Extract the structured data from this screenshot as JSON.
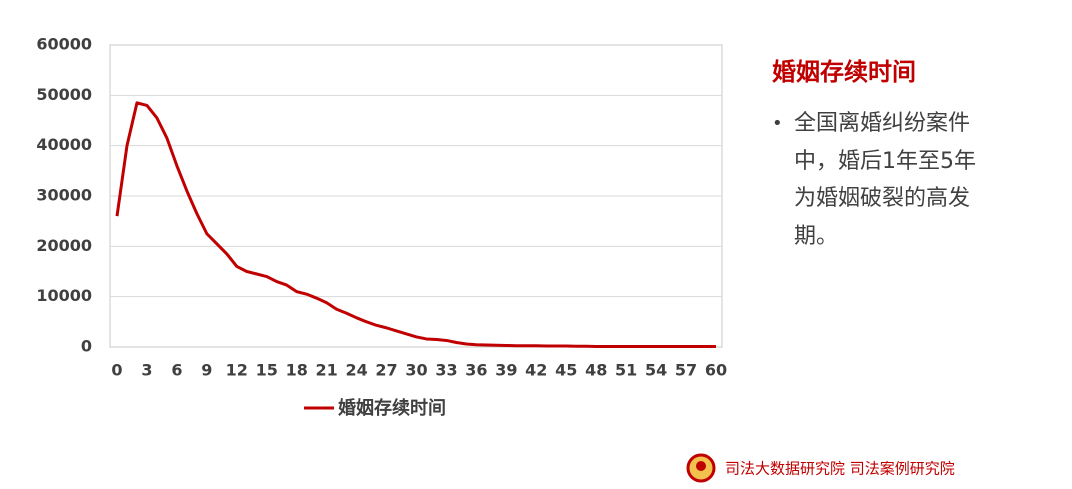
{
  "chart_data": {
    "type": "line",
    "x": [
      0,
      1,
      2,
      3,
      4,
      5,
      6,
      7,
      8,
      9,
      10,
      11,
      12,
      13,
      14,
      15,
      16,
      17,
      18,
      19,
      20,
      21,
      22,
      23,
      24,
      25,
      26,
      27,
      28,
      29,
      30,
      31,
      32,
      33,
      34,
      35,
      36,
      37,
      38,
      39,
      40,
      41,
      42,
      43,
      44,
      45,
      46,
      47,
      48,
      49,
      50,
      51,
      52,
      53,
      54,
      55,
      56,
      57,
      58,
      59,
      60
    ],
    "series": [
      {
        "name": "婚姻存续时间",
        "color": "#c00000",
        "values": [
          26000,
          40000,
          48500,
          48000,
          45500,
          41500,
          36000,
          31000,
          26500,
          22500,
          20500,
          18500,
          16000,
          15000,
          14500,
          14000,
          13000,
          12300,
          11000,
          10500,
          9700,
          8800,
          7500,
          6700,
          5800,
          5000,
          4300,
          3800,
          3200,
          2600,
          2000,
          1600,
          1500,
          1300,
          900,
          600,
          450,
          400,
          350,
          300,
          250,
          250,
          250,
          200,
          200,
          200,
          150,
          150,
          100,
          100,
          100,
          100,
          100,
          100,
          100,
          100,
          100,
          100,
          100,
          100,
          100
        ]
      }
    ],
    "xlim": [
      0,
      60
    ],
    "xticks": [
      0,
      3,
      6,
      9,
      12,
      15,
      18,
      21,
      24,
      27,
      30,
      33,
      36,
      39,
      42,
      45,
      48,
      51,
      54,
      57,
      60
    ],
    "ylim": [
      0,
      60000
    ],
    "yticks": [
      0,
      10000,
      20000,
      30000,
      40000,
      50000,
      60000
    ],
    "grid": true,
    "legend": "bottom"
  },
  "side": {
    "title": "婚姻存续时间",
    "bullets": [
      {
        "lines": [
          "全国离婚纠纷案件",
          "中，婚后1年至5年",
          "为婚姻破裂的高发",
          "期。"
        ]
      }
    ]
  },
  "footer": {
    "text": "司法大数据研究院  司法案例研究院"
  }
}
